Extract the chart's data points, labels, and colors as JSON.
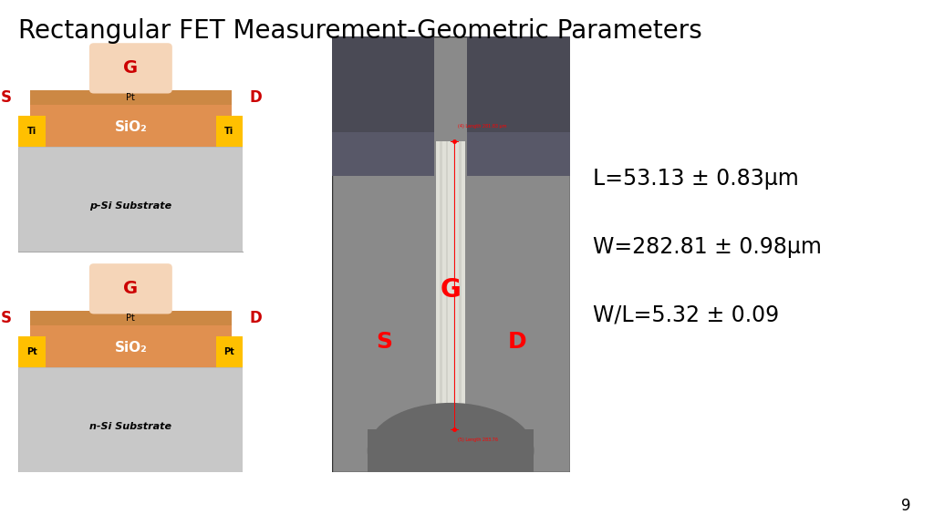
{
  "title": "Rectangular FET Measurement-Geometric Parameters",
  "title_fontsize": 20,
  "bg_color": "#ffffff",
  "page_number": "9",
  "diagram1": {
    "substrate_color": "#c8c8c8",
    "substrate_label": "p-Si Substrate",
    "sio2_color": "#e09050",
    "sio2_label": "SiO₂",
    "pt_label": "Pt",
    "gate_color": "#f5d5b8",
    "gate_label": "G",
    "contact_color": "#ffc000",
    "contact_label_left": "Ti",
    "contact_label_right": "Ti",
    "S_label": "S",
    "D_label": "D",
    "label_color": "#cc0000"
  },
  "diagram2": {
    "substrate_color": "#c8c8c8",
    "substrate_label": "n-Si Substrate",
    "sio2_color": "#e09050",
    "sio2_label": "SiO₂",
    "pt_label": "Pt",
    "gate_color": "#f5d5b8",
    "gate_label": "G",
    "contact_color": "#ffc000",
    "contact_label_left": "Pt",
    "contact_label_right": "Pt",
    "S_label": "S",
    "D_label": "D",
    "label_color": "#cc0000"
  },
  "measurements": [
    "L=53.13 ± 0.83μm",
    "W=282.81 ± 0.98μm",
    "W/L=5.32 ± 0.09"
  ],
  "measurement_fontsize": 17,
  "img_bg": "#8a8a8a",
  "img_pad_dark": "#4a4a55",
  "img_channel": "#ddddd5",
  "img_bottom_dark": "#606060"
}
